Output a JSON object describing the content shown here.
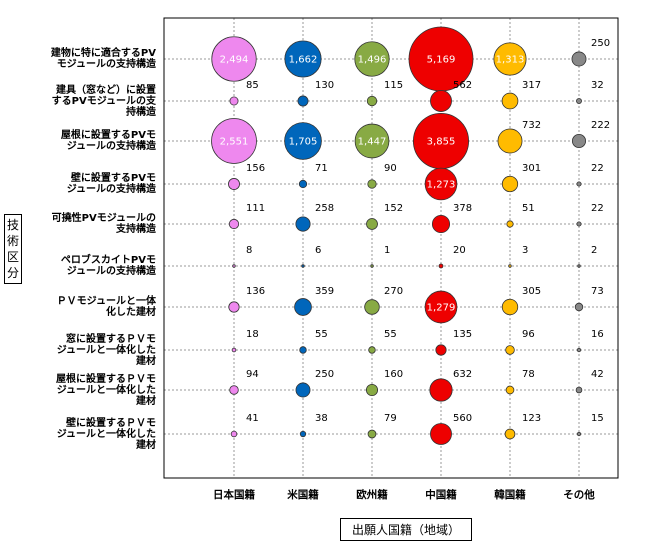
{
  "chart_data": {
    "type": "bubble",
    "ylabel": "技術区分",
    "xlabel": "出願人国籍（地域）",
    "categories_x": [
      "日本国籍",
      "米国籍",
      "欧州籍",
      "中国籍",
      "韓国籍",
      "その他"
    ],
    "categories_y": [
      "建物に特に適合するPV\nモジュールの支持構造",
      "建具（窓など）に設置\nするPVモジュールの支\n持構造",
      "屋根に設置するPVモ\nジュールの支持構造",
      "壁に設置するPVモ\nジュールの支持構造",
      "可撓性PVモジュールの\n支持構造",
      "ペロブスカイトPVモ\nジュールの支持構造",
      "ＰＶモジュールと一体\n化した建材",
      "窓に設置するＰＶモ\nジュールと一体化した\n建材",
      "屋根に設置するＰＶモ\nジュールと一体化した\n建材",
      "壁に設置するＰＶモ\nジュールと一体化した\n建材"
    ],
    "values": [
      [
        "2,494",
        "1,662",
        "1,496",
        "5,169",
        "1,313",
        "250"
      ],
      [
        "85",
        "130",
        "115",
        "562",
        "317",
        "32"
      ],
      [
        "2,551",
        "1,705",
        "1,447",
        "3,855",
        "732",
        "222"
      ],
      [
        "156",
        "71",
        "90",
        "1,273",
        "301",
        "22"
      ],
      [
        "111",
        "258",
        "152",
        "378",
        "51",
        "22"
      ],
      [
        "8",
        "6",
        "1",
        "20",
        "3",
        "2"
      ],
      [
        "136",
        "359",
        "270",
        "1,279",
        "305",
        "73"
      ],
      [
        "18",
        "55",
        "55",
        "135",
        "96",
        "16"
      ],
      [
        "94",
        "250",
        "160",
        "632",
        "78",
        "42"
      ],
      [
        "41",
        "38",
        "79",
        "560",
        "123",
        "15"
      ]
    ],
    "colors": [
      "#ee88ee",
      "#0066bb",
      "#88aa44",
      "#ee0000",
      "#ffbb00",
      "#888888"
    ]
  }
}
